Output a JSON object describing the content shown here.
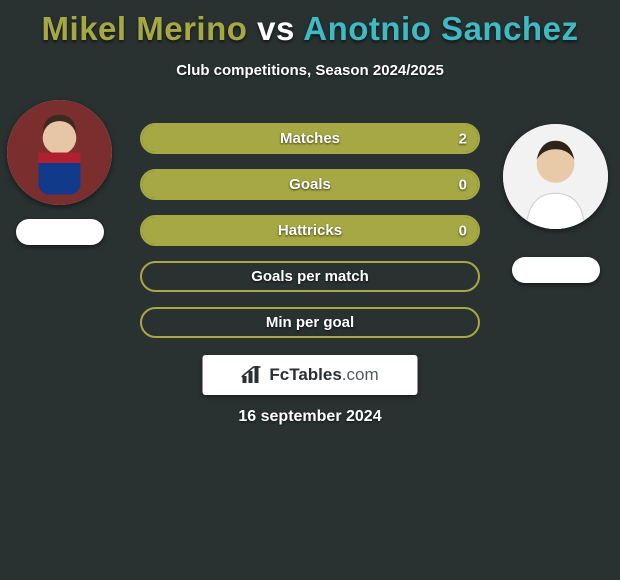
{
  "title": {
    "player1": "Mikel Merino",
    "vs": "vs",
    "player2": "Anotnio Sanchez",
    "color_player1": "#a6a943",
    "color_vs": "#ffffff",
    "color_player2": "#3fb9c4"
  },
  "subtitle": "Club competitions, Season 2024/2025",
  "bars": {
    "border_color": "#a6a943",
    "fill_color": "#a6a943",
    "items": [
      {
        "label": "Matches",
        "left": "",
        "right": "2",
        "fill_pct": 100
      },
      {
        "label": "Goals",
        "left": "",
        "right": "0",
        "fill_pct": 100
      },
      {
        "label": "Hattricks",
        "left": "",
        "right": "0",
        "fill_pct": 100
      },
      {
        "label": "Goals per match",
        "left": "",
        "right": "",
        "fill_pct": 0
      },
      {
        "label": "Min per goal",
        "left": "",
        "right": "",
        "fill_pct": 0
      }
    ]
  },
  "logo": {
    "brand_strong": "FcTables",
    "brand_light": ".com",
    "icon": "bar-chart-icon"
  },
  "date": "16 september 2024",
  "background_color": "#293231"
}
